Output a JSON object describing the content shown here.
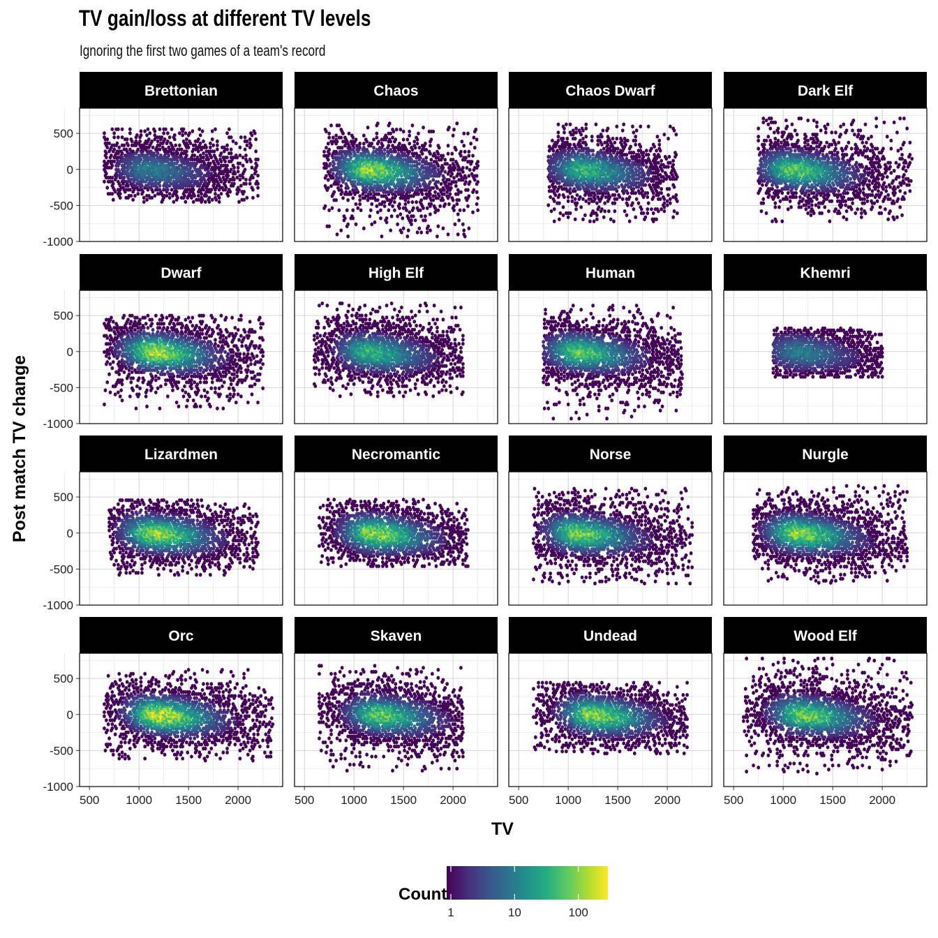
{
  "title": "TV gain/loss at different TV levels",
  "subtitle": "Ignoring the first two games of a team's record",
  "chart_data": {
    "type": "heatmap",
    "geom": "hexbin",
    "facet_by": "race",
    "xlabel": "TV",
    "ylabel": "Post match TV change",
    "xlim": [
      400,
      2450
    ],
    "ylim": [
      -1000,
      850
    ],
    "x_ticks": [
      500,
      1000,
      1500,
      2000
    ],
    "y_ticks": [
      -1000,
      -500,
      0,
      500
    ],
    "grid": true,
    "legend": {
      "title": "Count",
      "position": "bottom",
      "scale": "log10",
      "ticks": [
        "1",
        "10",
        "100"
      ],
      "colors": [
        "#440154",
        "#472d7b",
        "#3b528b",
        "#2c728e",
        "#21918c",
        "#28ae80",
        "#5ec962",
        "#addc30",
        "#fde725"
      ]
    },
    "facets": [
      {
        "name": "Brettonian",
        "x_range": [
          650,
          2200
        ],
        "y_range": [
          -450,
          560
        ],
        "peak_tv": 1100,
        "spread": 0.3,
        "density": 0.45
      },
      {
        "name": "Chaos",
        "x_range": [
          700,
          2250
        ],
        "y_range": [
          -930,
          640
        ],
        "peak_tv": 1150,
        "spread": 0.45,
        "density": 0.9
      },
      {
        "name": "Chaos Dwarf",
        "x_range": [
          800,
          2100
        ],
        "y_range": [
          -720,
          630
        ],
        "peak_tv": 1150,
        "spread": 0.4,
        "density": 0.7
      },
      {
        "name": "Dark Elf",
        "x_range": [
          750,
          2300
        ],
        "y_range": [
          -720,
          720
        ],
        "peak_tv": 1100,
        "spread": 0.45,
        "density": 0.8
      },
      {
        "name": "Dwarf",
        "x_range": [
          650,
          2250
        ],
        "y_range": [
          -790,
          510
        ],
        "peak_tv": 1150,
        "spread": 0.4,
        "density": 0.95
      },
      {
        "name": "High Elf",
        "x_range": [
          600,
          2100
        ],
        "y_range": [
          -620,
          690
        ],
        "peak_tv": 1150,
        "spread": 0.4,
        "density": 0.7
      },
      {
        "name": "Human",
        "x_range": [
          750,
          2150
        ],
        "y_range": [
          -930,
          640
        ],
        "peak_tv": 1100,
        "spread": 0.35,
        "density": 0.8
      },
      {
        "name": "Khemri",
        "x_range": [
          900,
          2000
        ],
        "y_range": [
          -350,
          330
        ],
        "peak_tv": 1150,
        "spread": 0.25,
        "density": 0.45
      },
      {
        "name": "Lizardmen",
        "x_range": [
          700,
          2200
        ],
        "y_range": [
          -580,
          480
        ],
        "peak_tv": 1150,
        "spread": 0.3,
        "density": 0.9
      },
      {
        "name": "Necromantic",
        "x_range": [
          650,
          2150
        ],
        "y_range": [
          -460,
          480
        ],
        "peak_tv": 1200,
        "spread": 0.3,
        "density": 0.9
      },
      {
        "name": "Norse",
        "x_range": [
          650,
          2250
        ],
        "y_range": [
          -700,
          650
        ],
        "peak_tv": 1100,
        "spread": 0.4,
        "density": 0.85
      },
      {
        "name": "Nurgle",
        "x_range": [
          700,
          2250
        ],
        "y_range": [
          -690,
          680
        ],
        "peak_tv": 1150,
        "spread": 0.3,
        "density": 0.9
      },
      {
        "name": "Orc",
        "x_range": [
          650,
          2350
        ],
        "y_range": [
          -640,
          620
        ],
        "peak_tv": 1200,
        "spread": 0.3,
        "density": 1.0
      },
      {
        "name": "Skaven",
        "x_range": [
          650,
          2100
        ],
        "y_range": [
          -780,
          690
        ],
        "peak_tv": 1250,
        "spread": 0.4,
        "density": 0.8
      },
      {
        "name": "Undead",
        "x_range": [
          650,
          2200
        ],
        "y_range": [
          -540,
          450
        ],
        "peak_tv": 1250,
        "spread": 0.3,
        "density": 0.9
      },
      {
        "name": "Wood Elf",
        "x_range": [
          600,
          2300
        ],
        "y_range": [
          -820,
          780
        ],
        "peak_tv": 1200,
        "spread": 0.45,
        "density": 0.85
      }
    ]
  }
}
